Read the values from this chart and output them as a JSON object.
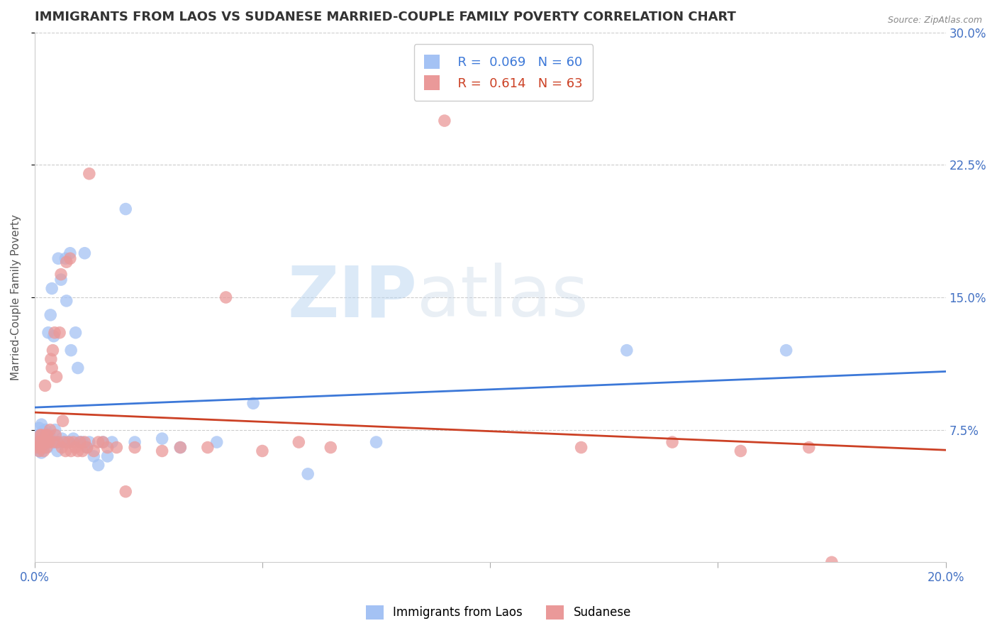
{
  "title": "IMMIGRANTS FROM LAOS VS SUDANESE MARRIED-COUPLE FAMILY POVERTY CORRELATION CHART",
  "source": "Source: ZipAtlas.com",
  "ylabel": "Married-Couple Family Poverty",
  "xlim": [
    0.0,
    0.2
  ],
  "ylim": [
    0.0,
    0.3
  ],
  "xtick_positions": [
    0.0,
    0.05,
    0.1,
    0.15,
    0.2
  ],
  "xtick_labels": [
    "0.0%",
    "",
    "",
    "",
    "20.0%"
  ],
  "ytick_labels_right": [
    "30.0%",
    "22.5%",
    "15.0%",
    "7.5%"
  ],
  "yticks_right": [
    0.3,
    0.225,
    0.15,
    0.075
  ],
  "series1_label": "Immigrants from Laos",
  "series1_R": "0.069",
  "series1_N": "60",
  "series1_color": "#a4c2f4",
  "series1_line_color": "#3c78d8",
  "series2_label": "Sudanese",
  "series2_R": "0.614",
  "series2_N": "63",
  "series2_color": "#ea9999",
  "series2_line_color": "#cc4125",
  "watermark_text": "ZIP",
  "watermark_text2": "atlas",
  "background_color": "#ffffff",
  "grid_color": "#cccccc",
  "title_fontsize": 13,
  "axis_label_fontsize": 11,
  "tick_fontsize": 12,
  "series1_x": [
    0.0006,
    0.0008,
    0.001,
    0.001,
    0.0012,
    0.0013,
    0.0015,
    0.0015,
    0.0016,
    0.0018,
    0.002,
    0.0022,
    0.0024,
    0.0025,
    0.0026,
    0.0028,
    0.003,
    0.003,
    0.0032,
    0.0035,
    0.0036,
    0.0038,
    0.004,
    0.0042,
    0.0045,
    0.0048,
    0.005,
    0.0052,
    0.0055,
    0.0058,
    0.006,
    0.0065,
    0.0068,
    0.007,
    0.0075,
    0.0078,
    0.008,
    0.0085,
    0.009,
    0.0095,
    0.01,
    0.0105,
    0.011,
    0.0115,
    0.012,
    0.013,
    0.014,
    0.015,
    0.016,
    0.017,
    0.02,
    0.022,
    0.028,
    0.032,
    0.04,
    0.048,
    0.06,
    0.075,
    0.13,
    0.165
  ],
  "series1_y": [
    0.068,
    0.072,
    0.063,
    0.076,
    0.065,
    0.07,
    0.062,
    0.078,
    0.068,
    0.074,
    0.065,
    0.07,
    0.075,
    0.068,
    0.073,
    0.065,
    0.068,
    0.13,
    0.072,
    0.14,
    0.068,
    0.155,
    0.068,
    0.128,
    0.075,
    0.068,
    0.063,
    0.172,
    0.068,
    0.16,
    0.07,
    0.068,
    0.172,
    0.148,
    0.068,
    0.175,
    0.12,
    0.07,
    0.13,
    0.11,
    0.068,
    0.068,
    0.175,
    0.065,
    0.068,
    0.06,
    0.055,
    0.068,
    0.06,
    0.068,
    0.2,
    0.068,
    0.07,
    0.065,
    0.068,
    0.09,
    0.05,
    0.068,
    0.12,
    0.12
  ],
  "series2_x": [
    0.0005,
    0.0008,
    0.001,
    0.0012,
    0.0013,
    0.0015,
    0.0016,
    0.0018,
    0.002,
    0.0022,
    0.0023,
    0.0025,
    0.0026,
    0.0028,
    0.003,
    0.0032,
    0.0034,
    0.0036,
    0.0038,
    0.004,
    0.0042,
    0.0044,
    0.0046,
    0.0048,
    0.005,
    0.0055,
    0.0058,
    0.006,
    0.0062,
    0.0065,
    0.0068,
    0.007,
    0.0075,
    0.0078,
    0.008,
    0.0085,
    0.009,
    0.0095,
    0.01,
    0.0105,
    0.011,
    0.0115,
    0.012,
    0.013,
    0.014,
    0.015,
    0.016,
    0.018,
    0.02,
    0.022,
    0.028,
    0.032,
    0.038,
    0.042,
    0.05,
    0.058,
    0.065,
    0.09,
    0.12,
    0.14,
    0.155,
    0.17,
    0.175
  ],
  "series2_y": [
    0.065,
    0.068,
    0.063,
    0.068,
    0.072,
    0.065,
    0.072,
    0.068,
    0.063,
    0.068,
    0.1,
    0.072,
    0.065,
    0.072,
    0.068,
    0.068,
    0.075,
    0.115,
    0.11,
    0.12,
    0.068,
    0.13,
    0.072,
    0.105,
    0.068,
    0.13,
    0.163,
    0.065,
    0.08,
    0.068,
    0.063,
    0.17,
    0.068,
    0.172,
    0.063,
    0.068,
    0.065,
    0.063,
    0.068,
    0.063,
    0.068,
    0.065,
    0.22,
    0.063,
    0.068,
    0.068,
    0.065,
    0.065,
    0.04,
    0.065,
    0.063,
    0.065,
    0.065,
    0.15,
    0.063,
    0.068,
    0.065,
    0.25,
    0.065,
    0.068,
    0.063,
    0.065,
    0.0
  ]
}
